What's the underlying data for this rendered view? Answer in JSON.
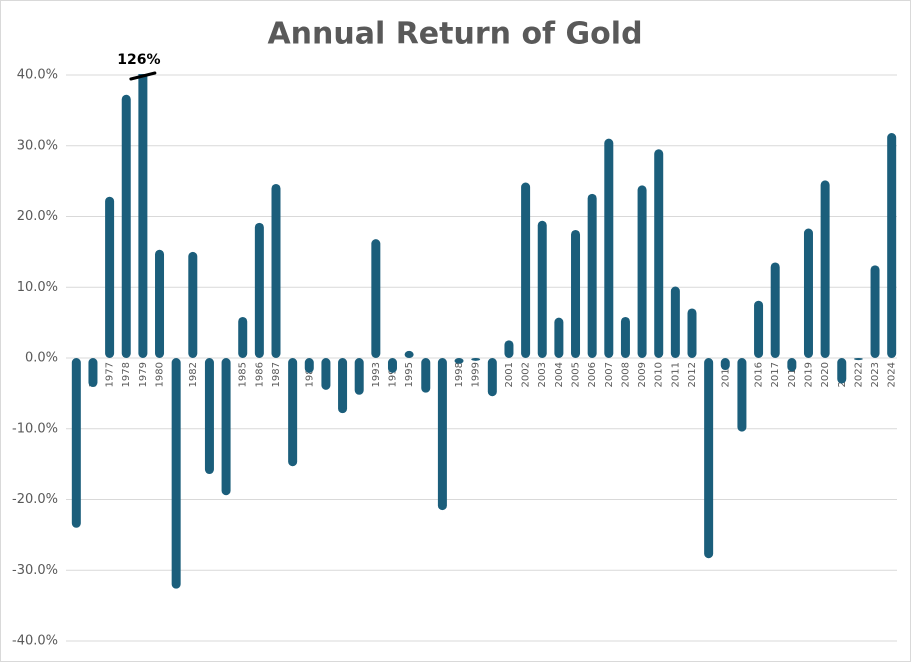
{
  "chart_data": {
    "type": "bar",
    "title": "Annual Return of Gold",
    "categories": [
      "1975",
      "1976",
      "1977",
      "1978",
      "1979",
      "1980",
      "1981",
      "1982",
      "1983",
      "1984",
      "1985",
      "1986",
      "1987",
      "1988",
      "1989",
      "1990",
      "1991",
      "1992",
      "1993",
      "1994",
      "1995",
      "1996",
      "1997",
      "1998",
      "1999",
      "2000",
      "2001",
      "2002",
      "2003",
      "2004",
      "2005",
      "2006",
      "2007",
      "2008",
      "2009",
      "2010",
      "2011",
      "2012",
      "2013",
      "2014",
      "2015",
      "2016",
      "2017",
      "2018",
      "2019",
      "2020",
      "2021",
      "2022",
      "2023",
      "2024"
    ],
    "values": [
      -24.0,
      -4.1,
      22.8,
      37.2,
      126,
      15.3,
      -32.6,
      15.0,
      -16.4,
      -19.4,
      5.8,
      19.1,
      24.6,
      -15.3,
      -2.1,
      -4.5,
      -7.8,
      -5.2,
      16.8,
      -2.1,
      1.0,
      -4.9,
      -21.5,
      -0.8,
      -0.4,
      -5.4,
      2.5,
      24.8,
      19.4,
      5.7,
      18.1,
      23.2,
      31.0,
      5.8,
      24.4,
      29.5,
      10.1,
      7.0,
      -28.3,
      -1.7,
      -10.4,
      8.1,
      13.5,
      -1.9,
      18.3,
      25.1,
      -3.6,
      -0.3,
      13.1,
      31.8
    ],
    "value_labels": [
      null,
      null,
      null,
      null,
      "126%",
      null,
      null,
      null,
      null,
      null,
      null,
      null,
      null,
      null,
      null,
      null,
      null,
      null,
      null,
      null,
      null,
      null,
      null,
      null,
      null,
      null,
      null,
      null,
      null,
      null,
      null,
      null,
      null,
      null,
      null,
      null,
      null,
      null,
      null,
      null,
      null,
      null,
      null,
      null,
      null,
      null,
      null,
      null,
      null,
      null
    ],
    "color": "#1b5e7b",
    "ylim": [
      -40,
      40
    ],
    "yticks": [
      {
        "value": -40,
        "label": "-40.0%"
      },
      {
        "value": -30,
        "label": "-30.0%"
      },
      {
        "value": -20,
        "label": "-20.0%"
      },
      {
        "value": -10,
        "label": "-10.0%"
      },
      {
        "value": 0,
        "label": "0.0%"
      },
      {
        "value": 10,
        "label": "10.0%"
      },
      {
        "value": 20,
        "label": "20.0%"
      },
      {
        "value": 30,
        "label": "30.0%"
      },
      {
        "value": 40,
        "label": "40.0%"
      }
    ],
    "grid": true
  }
}
